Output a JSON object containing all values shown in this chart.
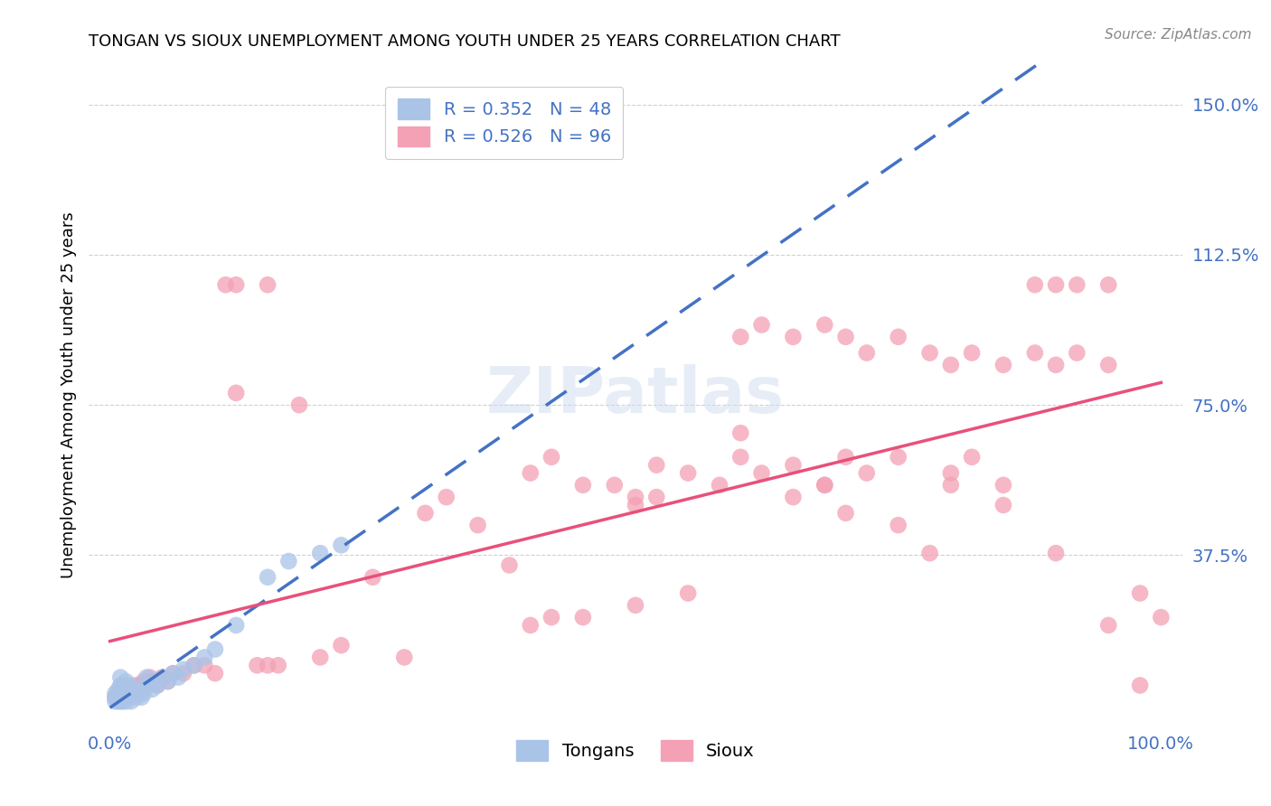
{
  "title": "TONGAN VS SIOUX UNEMPLOYMENT AMONG YOUTH UNDER 25 YEARS CORRELATION CHART",
  "source": "Source: ZipAtlas.com",
  "ylabel": "Unemployment Among Youth under 25 years",
  "xlim": [
    -0.02,
    1.02
  ],
  "ylim": [
    -0.05,
    1.6
  ],
  "xticks": [
    0.0,
    0.25,
    0.5,
    0.75,
    1.0
  ],
  "xticklabels": [
    "0.0%",
    "",
    "",
    "",
    "100.0%"
  ],
  "ytick_positions": [
    0.375,
    0.75,
    1.125,
    1.5
  ],
  "yticklabels": [
    "37.5%",
    "75.0%",
    "112.5%",
    "150.0%"
  ],
  "ytick_color": "#4472c4",
  "xtick_color": "#4472c4",
  "grid_color": "#d0d0d0",
  "background_color": "#ffffff",
  "legend_r1": "R = 0.352",
  "legend_n1": "N = 48",
  "legend_r2": "R = 0.526",
  "legend_n2": "N = 96",
  "legend_color": "#4472c4",
  "tongan_color": "#aac4e8",
  "sioux_color": "#f4a0b5",
  "tongan_line_color": "#4472c4",
  "sioux_line_color": "#e8507a",
  "watermark": "ZIPatlas",
  "tongan_scatter_x": [
    0.005,
    0.005,
    0.005,
    0.008,
    0.008,
    0.008,
    0.01,
    0.01,
    0.01,
    0.01,
    0.01,
    0.012,
    0.012,
    0.012,
    0.015,
    0.015,
    0.015,
    0.015,
    0.018,
    0.018,
    0.02,
    0.02,
    0.02,
    0.022,
    0.025,
    0.025,
    0.028,
    0.03,
    0.03,
    0.032,
    0.035,
    0.035,
    0.04,
    0.04,
    0.045,
    0.05,
    0.055,
    0.06,
    0.065,
    0.07,
    0.08,
    0.09,
    0.1,
    0.12,
    0.15,
    0.17,
    0.2,
    0.22
  ],
  "tongan_scatter_y": [
    0.01,
    0.02,
    0.03,
    0.01,
    0.02,
    0.04,
    0.01,
    0.02,
    0.03,
    0.05,
    0.07,
    0.01,
    0.03,
    0.05,
    0.01,
    0.02,
    0.03,
    0.06,
    0.02,
    0.04,
    0.01,
    0.03,
    0.05,
    0.03,
    0.02,
    0.04,
    0.03,
    0.02,
    0.04,
    0.03,
    0.05,
    0.07,
    0.04,
    0.06,
    0.05,
    0.07,
    0.06,
    0.08,
    0.07,
    0.09,
    0.1,
    0.12,
    0.14,
    0.2,
    0.32,
    0.36,
    0.38,
    0.4
  ],
  "sioux_scatter_x": [
    0.005,
    0.008,
    0.01,
    0.012,
    0.015,
    0.018,
    0.02,
    0.022,
    0.025,
    0.028,
    0.03,
    0.032,
    0.035,
    0.038,
    0.04,
    0.045,
    0.05,
    0.055,
    0.06,
    0.07,
    0.08,
    0.09,
    0.1,
    0.11,
    0.12,
    0.14,
    0.15,
    0.16,
    0.18,
    0.2,
    0.22,
    0.25,
    0.28,
    0.3,
    0.32,
    0.35,
    0.38,
    0.4,
    0.42,
    0.45,
    0.48,
    0.5,
    0.52,
    0.55,
    0.58,
    0.6,
    0.62,
    0.65,
    0.68,
    0.7,
    0.72,
    0.75,
    0.78,
    0.8,
    0.82,
    0.85,
    0.88,
    0.9,
    0.92,
    0.95,
    0.98,
    1.0,
    0.5,
    0.52,
    0.6,
    0.62,
    0.65,
    0.68,
    0.7,
    0.72,
    0.75,
    0.78,
    0.8,
    0.82,
    0.85,
    0.88,
    0.9,
    0.92,
    0.95,
    0.98,
    0.12,
    0.15,
    0.4,
    0.42,
    0.45,
    0.5,
    0.55,
    0.65,
    0.7,
    0.75,
    0.8,
    0.85,
    0.9,
    0.95,
    0.6,
    0.68
  ],
  "sioux_scatter_y": [
    0.02,
    0.03,
    0.02,
    0.04,
    0.02,
    0.03,
    0.04,
    0.03,
    0.05,
    0.04,
    0.05,
    0.06,
    0.05,
    0.07,
    0.06,
    0.05,
    0.07,
    0.06,
    0.08,
    0.08,
    0.1,
    0.1,
    0.08,
    1.05,
    0.78,
    0.1,
    0.1,
    0.1,
    0.75,
    0.12,
    0.15,
    0.32,
    0.12,
    0.48,
    0.52,
    0.45,
    0.35,
    0.58,
    0.62,
    0.55,
    0.55,
    0.52,
    0.6,
    0.58,
    0.55,
    0.62,
    0.58,
    0.6,
    0.55,
    0.62,
    0.58,
    0.62,
    0.38,
    0.58,
    0.62,
    0.55,
    1.05,
    1.05,
    1.05,
    1.05,
    0.05,
    0.22,
    0.5,
    0.52,
    0.92,
    0.95,
    0.92,
    0.95,
    0.92,
    0.88,
    0.92,
    0.88,
    0.85,
    0.88,
    0.85,
    0.88,
    0.85,
    0.88,
    0.85,
    0.28,
    1.05,
    1.05,
    0.2,
    0.22,
    0.22,
    0.25,
    0.28,
    0.52,
    0.48,
    0.45,
    0.55,
    0.5,
    0.38,
    0.2,
    0.68,
    0.55
  ]
}
